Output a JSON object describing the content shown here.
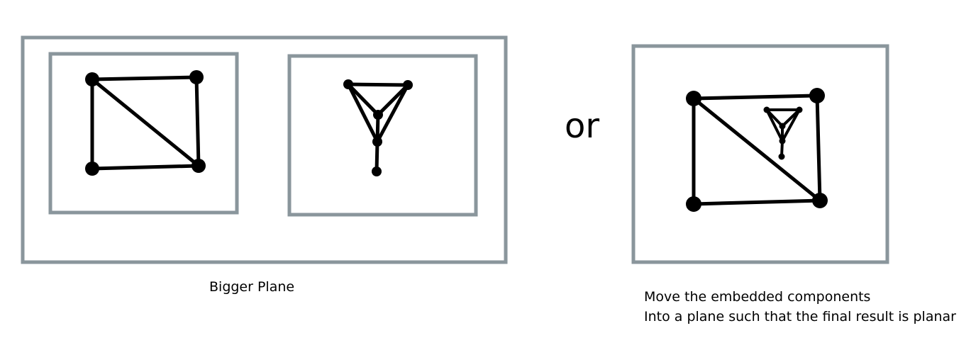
{
  "labels": {
    "or": "or",
    "bigger_plane": "Bigger Plane",
    "caption_line1": "Move the embedded components",
    "caption_line2": "Into a plane such that the final result is planar"
  },
  "colors": {
    "frame": "#8a969c",
    "ink": "#000000",
    "background": "#ffffff"
  }
}
